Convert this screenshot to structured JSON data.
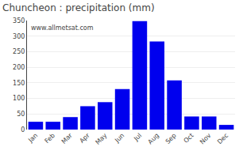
{
  "chart_data": {
    "type": "bar",
    "title": "Chuncheon : precipitation (mm)",
    "categories": [
      "Jan",
      "Feb",
      "Mar",
      "Apr",
      "May",
      "Jun",
      "Jul",
      "Aug",
      "Sep",
      "Oct",
      "Nov",
      "Dec"
    ],
    "values": [
      25,
      25,
      40,
      75,
      88,
      130,
      348,
      283,
      158,
      42,
      42,
      15
    ],
    "color": "#0000EE",
    "ylim": [
      0,
      350
    ],
    "yticks": [
      0,
      50,
      100,
      150,
      200,
      250,
      300,
      350
    ],
    "grid": true,
    "annotations": [
      "www.allmetsat.com"
    ]
  }
}
